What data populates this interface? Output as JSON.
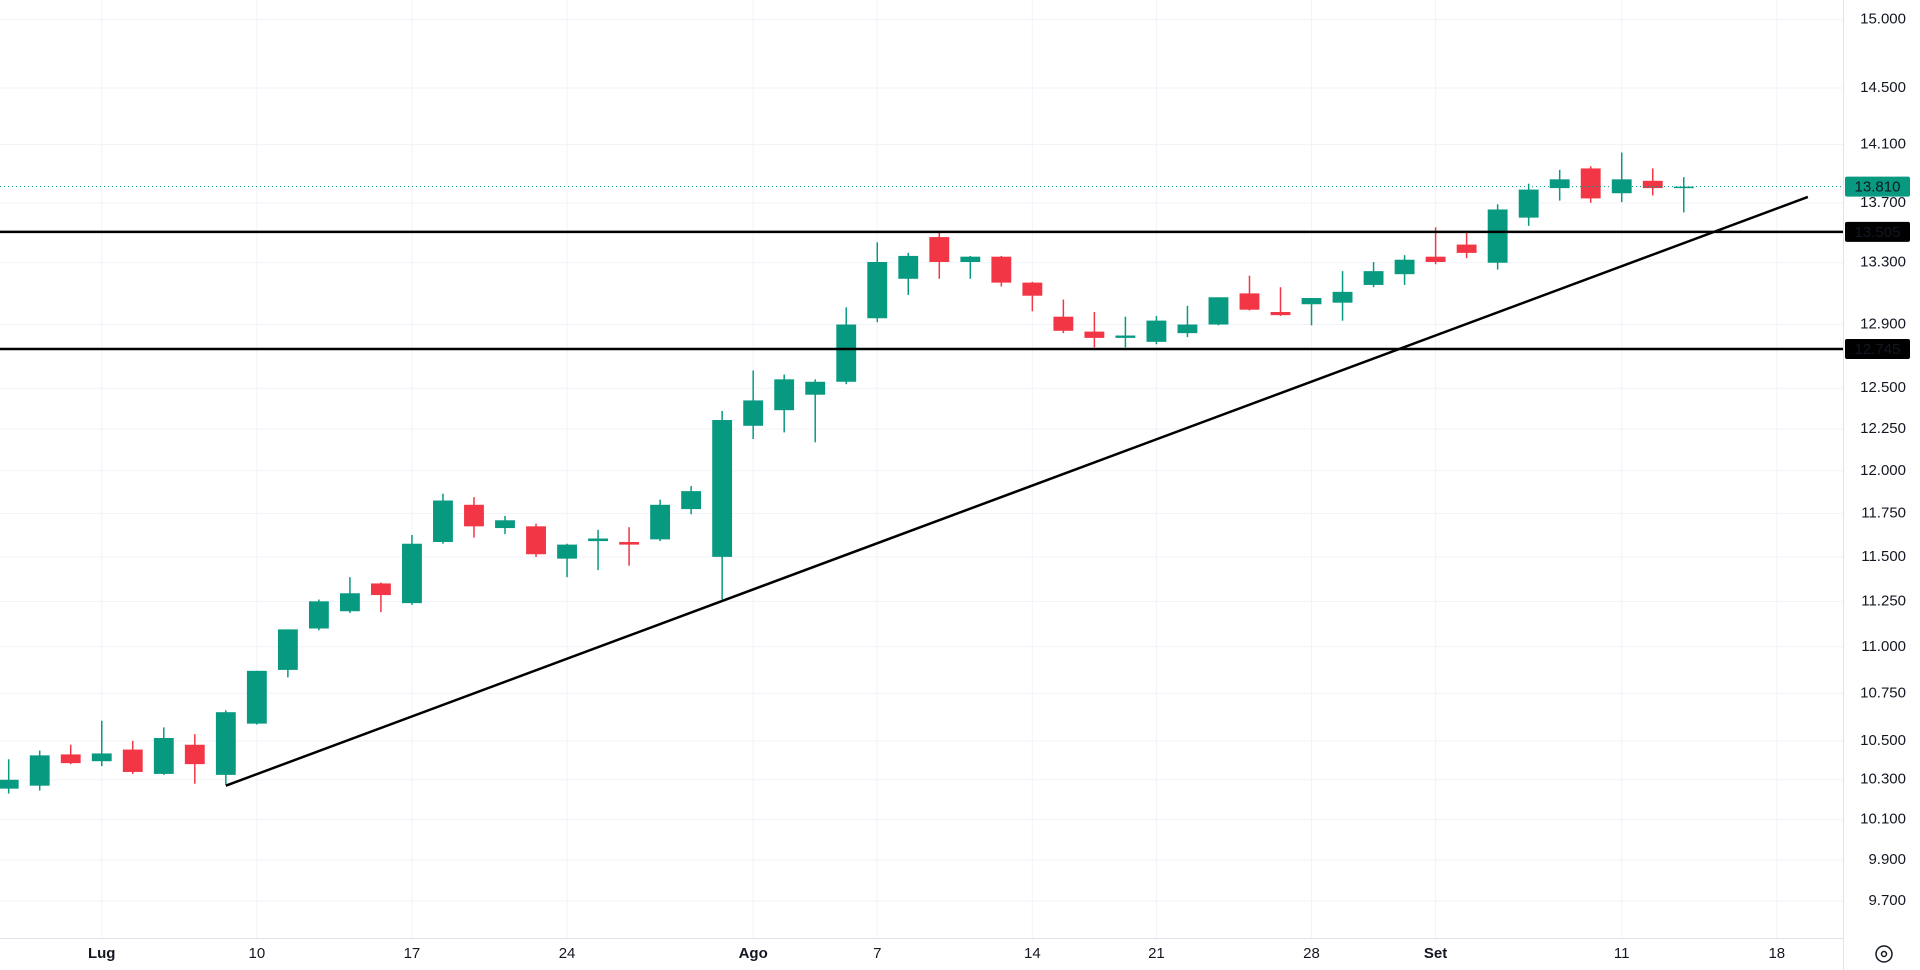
{
  "chart_data": {
    "type": "candlestick",
    "log": true,
    "grid": true,
    "up_color": "#089981",
    "down_color": "#f23645",
    "categories": [
      null,
      null,
      null,
      "Lug",
      null,
      null,
      null,
      null,
      "10",
      null,
      null,
      null,
      null,
      "17",
      null,
      null,
      null,
      null,
      "24",
      null,
      null,
      null,
      null,
      null,
      "Ago",
      null,
      null,
      null,
      "7",
      null,
      null,
      null,
      null,
      "14",
      null,
      null,
      null,
      "21",
      null,
      null,
      null,
      null,
      "28",
      null,
      null,
      null,
      "Set",
      null,
      null,
      null,
      null,
      null,
      "11",
      null,
      null,
      null,
      null,
      "18",
      null
    ],
    "series": {
      "open": [
        10255,
        10270,
        10430,
        10395,
        10455,
        10330,
        10480,
        10325,
        10590,
        10875,
        11100,
        11195,
        11350,
        11240,
        11585,
        11800,
        11665,
        11675,
        11490,
        11590,
        11585,
        11600,
        11775,
        11500,
        12270,
        12365,
        12460,
        12540,
        12940,
        13195,
        13470,
        13305,
        13340,
        13170,
        12950,
        12855,
        12815,
        12790,
        12845,
        12900,
        13100,
        12980,
        13030,
        13040,
        13155,
        13225,
        13340,
        13420,
        13300,
        13600,
        13800,
        13935,
        13765,
        13850,
        13800,
        null,
        null,
        null,
        null
      ],
      "high": [
        10405,
        10450,
        10480,
        10605,
        10500,
        10570,
        10535,
        10660,
        10870,
        11095,
        11260,
        11385,
        11355,
        11625,
        11865,
        11845,
        11735,
        11690,
        11575,
        11655,
        11670,
        11830,
        11910,
        12360,
        12610,
        12585,
        12555,
        13010,
        13435,
        13365,
        13510,
        13345,
        13345,
        13175,
        13060,
        12980,
        12950,
        12955,
        13020,
        13075,
        13215,
        13140,
        13070,
        13245,
        13305,
        13350,
        13535,
        13500,
        13690,
        13830,
        13925,
        13950,
        14045,
        13935,
        13875,
        null,
        null,
        null,
        null
      ],
      "low": [
        10230,
        10245,
        10380,
        10370,
        10330,
        10325,
        10280,
        10275,
        10585,
        10835,
        11090,
        11185,
        11190,
        11230,
        11575,
        11610,
        11630,
        11500,
        11385,
        11425,
        11450,
        11590,
        11745,
        11260,
        12190,
        12230,
        12170,
        12525,
        12915,
        13090,
        13195,
        13195,
        13145,
        12985,
        12845,
        12755,
        12755,
        12775,
        12820,
        12895,
        12990,
        12955,
        12895,
        12925,
        13140,
        13155,
        13290,
        13330,
        13255,
        13545,
        13715,
        13700,
        13705,
        13750,
        13635,
        null,
        null,
        null,
        null
      ],
      "close": [
        10300,
        10425,
        10385,
        10435,
        10340,
        10515,
        10380,
        10650,
        10870,
        11095,
        11250,
        11295,
        11285,
        11575,
        11825,
        11675,
        11710,
        11515,
        11570,
        11605,
        11570,
        11800,
        11880,
        12305,
        12425,
        12555,
        12540,
        12900,
        13305,
        13345,
        13305,
        13340,
        13170,
        13085,
        12860,
        12815,
        12830,
        12925,
        12900,
        13075,
        12995,
        12960,
        13070,
        13110,
        13245,
        13320,
        13305,
        13365,
        13655,
        13790,
        13860,
        13730,
        13860,
        13800,
        13810,
        null,
        null,
        null,
        null
      ]
    },
    "ylim": [
      9525,
      15145
    ],
    "yticks": [
      {
        "value": 15000,
        "label": "15.000"
      },
      {
        "value": 14500,
        "label": "14.500"
      },
      {
        "value": 14100,
        "label": "14.100"
      },
      {
        "value": 13700,
        "label": "13.700"
      },
      {
        "value": 13300,
        "label": "13.300"
      },
      {
        "value": 12900,
        "label": "12.900"
      },
      {
        "value": 12500,
        "label": "12.500"
      },
      {
        "value": 12250,
        "label": "12.250"
      },
      {
        "value": 12000,
        "label": "12.000"
      },
      {
        "value": 11750,
        "label": "11.750"
      },
      {
        "value": 11500,
        "label": "11.500"
      },
      {
        "value": 11250,
        "label": "11.250"
      },
      {
        "value": 11000,
        "label": "11.000"
      },
      {
        "value": 10750,
        "label": "10.750"
      },
      {
        "value": 10500,
        "label": "10.500"
      },
      {
        "value": 10300,
        "label": "10.300"
      },
      {
        "value": 10100,
        "label": "10.100"
      },
      {
        "value": 9900,
        "label": "9.900"
      },
      {
        "value": 9700,
        "label": "9.700"
      }
    ],
    "hlines": [
      {
        "value": 13505,
        "label": "13.505"
      },
      {
        "value": 12745,
        "label": "12.745"
      }
    ],
    "last_price": {
      "value": 13810,
      "label": "13.810"
    },
    "trendline": {
      "x": [
        7,
        58
      ],
      "y": [
        10270,
        13740
      ]
    }
  }
}
